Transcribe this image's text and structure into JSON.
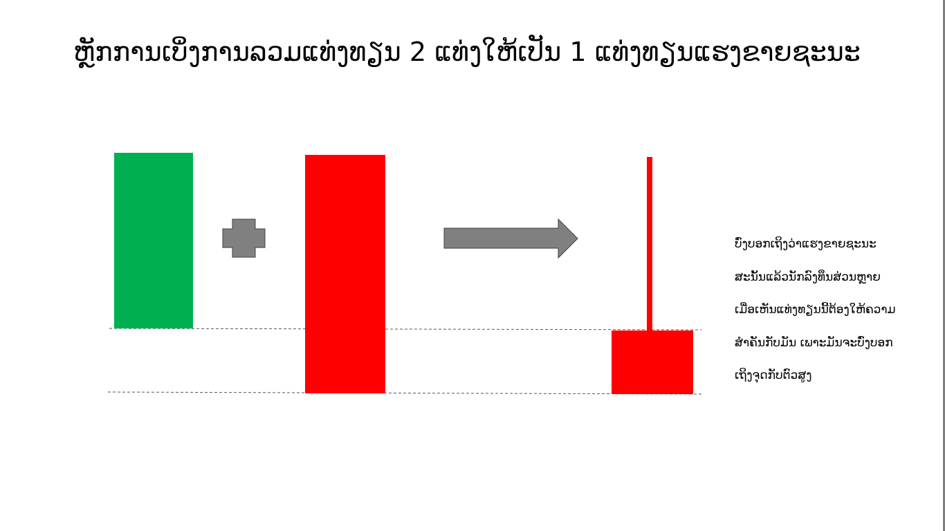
{
  "title": "ຫຼັກການເບິ່ງການລວມແທ່ງທຽນ 2 ແທ່ງໃຫ້ເປັນ 1 ແທ່ງທຽນແຮງຂາຍຊະນະ",
  "colors": {
    "bullish": "#00b050",
    "bearish": "#ff0000",
    "operator": "#808080",
    "guide_line": "#555555"
  },
  "icons": {
    "plus": "plus-icon",
    "arrow": "arrow-right-icon"
  },
  "description": {
    "lines": [
      "ບົ່ງບອກເຖິງວ່າແຮງຂາຍຊະນະ",
      "ສະນັ້ນແລ້ວນັກລົງທຶນສ່ວນຫຼາຍ",
      "ເມື່ອເຫັນແທ່ງທຽນນີ້ຕ້ອງໃຫ້ຄວາມ",
      "ສຳຄັນກັບມັນ ເພາະມັນຈະບົ່ງບອກ",
      "ເຖິງຈຸດກັບຕົວສູງ"
    ]
  }
}
